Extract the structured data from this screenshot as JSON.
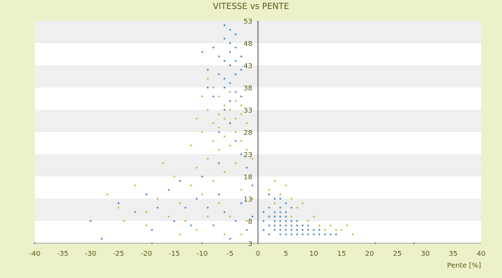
{
  "chart_data": {
    "type": "scatter",
    "title": "VITESSE vs PENTE",
    "xlabel": "Pente [%]",
    "ylabel": "",
    "xlim": [
      -40,
      40
    ],
    "ylim": [
      3,
      53
    ],
    "x_ticks": [
      -40,
      -35,
      -30,
      -25,
      -20,
      -15,
      -10,
      -5,
      0,
      5,
      10,
      15,
      20,
      25,
      30,
      35,
      40
    ],
    "y_ticks": [
      3,
      8,
      13,
      18,
      23,
      28,
      33,
      38,
      43,
      48,
      53
    ],
    "grid": "horizontal alternating bands",
    "legend": "none",
    "series": [
      {
        "color": "#b3bf3a",
        "marker": "diamond",
        "values": [
          [
            -27,
            14
          ],
          [
            -25,
            11
          ],
          [
            -22,
            16
          ],
          [
            -20,
            10
          ],
          [
            -18,
            13
          ],
          [
            -17,
            21
          ],
          [
            -16,
            9
          ],
          [
            -15,
            18
          ],
          [
            -14,
            12
          ],
          [
            -13,
            8
          ],
          [
            -12,
            25
          ],
          [
            -12,
            16
          ],
          [
            -11,
            31
          ],
          [
            -11,
            20
          ],
          [
            -10,
            36
          ],
          [
            -10,
            28
          ],
          [
            -10,
            14
          ],
          [
            -9,
            40
          ],
          [
            -9,
            33
          ],
          [
            -9,
            22
          ],
          [
            -8,
            38
          ],
          [
            -8,
            30
          ],
          [
            -8,
            26
          ],
          [
            -8,
            17
          ],
          [
            -7,
            36
          ],
          [
            -7,
            32
          ],
          [
            -7,
            29
          ],
          [
            -7,
            24
          ],
          [
            -7,
            12
          ],
          [
            -6,
            34
          ],
          [
            -6,
            31
          ],
          [
            -6,
            27
          ],
          [
            -6,
            19
          ],
          [
            -5,
            37
          ],
          [
            -5,
            33
          ],
          [
            -5,
            30
          ],
          [
            -5,
            25
          ],
          [
            -5,
            9
          ],
          [
            -4,
            35
          ],
          [
            -4,
            31
          ],
          [
            -4,
            28
          ],
          [
            -4,
            21
          ],
          [
            -3,
            34
          ],
          [
            -3,
            32
          ],
          [
            -3,
            26
          ],
          [
            -3,
            15
          ],
          [
            -2,
            30
          ],
          [
            -2,
            24
          ],
          [
            -2,
            8
          ],
          [
            -1,
            22
          ],
          [
            -1,
            13
          ],
          [
            -9,
            9
          ],
          [
            -11,
            6
          ],
          [
            -14,
            5
          ],
          [
            -20,
            7
          ],
          [
            -24,
            8
          ],
          [
            -6,
            5
          ],
          [
            -3,
            5
          ],
          [
            2,
            15
          ],
          [
            3,
            17
          ],
          [
            3,
            12
          ],
          [
            4,
            14
          ],
          [
            5,
            16
          ],
          [
            5,
            10
          ],
          [
            6,
            13
          ],
          [
            6,
            9
          ],
          [
            7,
            11
          ],
          [
            8,
            12
          ],
          [
            9,
            8
          ],
          [
            10,
            9
          ],
          [
            11,
            7
          ],
          [
            12,
            6
          ],
          [
            13,
            7
          ],
          [
            14,
            6
          ],
          [
            15,
            6
          ],
          [
            16,
            7
          ],
          [
            17,
            5
          ],
          [
            4,
            7
          ],
          [
            6,
            8
          ],
          [
            8,
            6
          ],
          [
            10,
            6
          ]
        ]
      },
      {
        "color": "#3f86c8",
        "marker": "diamond",
        "values": [
          [
            -8,
            47
          ],
          [
            -7,
            45
          ],
          [
            -7,
            41
          ],
          [
            -6,
            52
          ],
          [
            -6,
            49
          ],
          [
            -6,
            44
          ],
          [
            -6,
            40
          ],
          [
            -5,
            51
          ],
          [
            -5,
            48
          ],
          [
            -5,
            46
          ],
          [
            -5,
            43
          ],
          [
            -5,
            39
          ],
          [
            -4,
            50
          ],
          [
            -4,
            47
          ],
          [
            -4,
            44
          ],
          [
            -4,
            41
          ],
          [
            -4,
            37
          ],
          [
            -3,
            45
          ],
          [
            -3,
            42
          ],
          [
            -3,
            36
          ],
          [
            -9,
            42
          ],
          [
            -9,
            38
          ],
          [
            -10,
            46
          ],
          [
            -8,
            36
          ],
          [
            -6,
            33
          ],
          [
            -5,
            30
          ],
          [
            -4,
            26
          ],
          [
            -3,
            23
          ],
          [
            -2,
            20
          ],
          [
            -7,
            21
          ],
          [
            -7,
            28
          ],
          [
            -5,
            35
          ],
          [
            -6,
            38
          ],
          [
            -30,
            8
          ],
          [
            -28,
            4
          ],
          [
            -25,
            12
          ],
          [
            -22,
            10
          ],
          [
            -20,
            14
          ],
          [
            -19,
            6
          ],
          [
            -18,
            11
          ],
          [
            -16,
            15
          ],
          [
            -15,
            8
          ],
          [
            -14,
            17
          ],
          [
            -13,
            11
          ],
          [
            -12,
            7
          ],
          [
            -11,
            13
          ],
          [
            -10,
            18
          ],
          [
            -9,
            11
          ],
          [
            -8,
            7
          ],
          [
            -7,
            14
          ],
          [
            -6,
            10
          ],
          [
            -5,
            4
          ],
          [
            -4,
            8
          ],
          [
            -3,
            12
          ],
          [
            -2,
            6
          ],
          [
            -1,
            16
          ],
          [
            -1,
            9
          ],
          [
            1,
            8
          ],
          [
            1,
            6
          ],
          [
            1,
            10
          ],
          [
            2,
            7
          ],
          [
            2,
            9
          ],
          [
            2,
            5
          ],
          [
            2,
            11
          ],
          [
            3,
            8
          ],
          [
            3,
            6
          ],
          [
            3,
            9
          ],
          [
            3,
            7
          ],
          [
            3,
            10
          ],
          [
            4,
            8
          ],
          [
            4,
            6
          ],
          [
            4,
            9
          ],
          [
            4,
            7
          ],
          [
            4,
            5
          ],
          [
            4,
            11
          ],
          [
            5,
            8
          ],
          [
            5,
            6
          ],
          [
            5,
            7
          ],
          [
            5,
            9
          ],
          [
            5,
            5
          ],
          [
            5,
            10
          ],
          [
            6,
            7
          ],
          [
            6,
            6
          ],
          [
            6,
            8
          ],
          [
            6,
            5
          ],
          [
            7,
            7
          ],
          [
            7,
            6
          ],
          [
            7,
            8
          ],
          [
            7,
            5
          ],
          [
            8,
            7
          ],
          [
            8,
            6
          ],
          [
            8,
            5
          ],
          [
            9,
            6
          ],
          [
            9,
            7
          ],
          [
            9,
            5
          ],
          [
            10,
            6
          ],
          [
            10,
            5
          ],
          [
            11,
            6
          ],
          [
            11,
            5
          ],
          [
            12,
            5
          ],
          [
            13,
            5
          ],
          [
            14,
            5
          ],
          [
            4,
            13
          ],
          [
            5,
            12
          ],
          [
            6,
            11
          ],
          [
            3,
            13
          ],
          [
            2,
            14
          ],
          [
            4,
            10
          ],
          [
            21,
            3
          ],
          [
            28,
            3
          ],
          [
            -40,
            3
          ],
          [
            -19,
            3
          ],
          [
            -10,
            3
          ],
          [
            0,
            3
          ]
        ]
      }
    ]
  }
}
